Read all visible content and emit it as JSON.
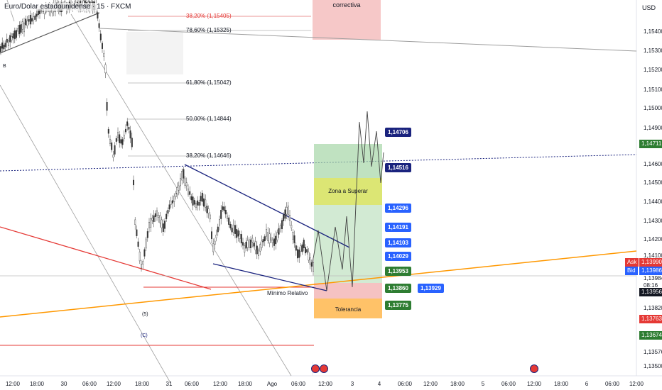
{
  "header": {
    "symbol": "Euro/Dolar estadounidense · 15 · FXCM",
    "currency": "USD"
  },
  "annotations": {
    "correctiva": "correctiva",
    "zona_superar": "Zona a Superar",
    "tolerancia": "Tolerancia",
    "minimo_relativo": "Mínimo Relativo",
    "wave_b": "B",
    "wave_5": "(5)",
    "wave_c": "(C)"
  },
  "fib_levels": [
    {
      "label": "38,20% (1,15405)",
      "color": "#e53935"
    },
    {
      "label": "78,60% (1,15325)",
      "color": "#131722"
    },
    {
      "label": "61,80% (1,15042)",
      "color": "#131722"
    },
    {
      "label": "50,00% (1,14844)",
      "color": "#131722"
    },
    {
      "label": "38,20% (1,14646)",
      "color": "#131722"
    }
  ],
  "target_tags": [
    {
      "label": "1,14706",
      "style": "navy"
    },
    {
      "label": "1,14516",
      "style": "navy"
    },
    {
      "label": "1,14296",
      "style": "blue"
    },
    {
      "label": "1,14191",
      "style": "blue"
    },
    {
      "label": "1,14103",
      "style": "blue"
    },
    {
      "label": "1,14029",
      "style": "blue"
    },
    {
      "label": "1,13953",
      "style": "green"
    },
    {
      "label": "1,13860",
      "style": "green"
    },
    {
      "label": "1,13929",
      "style": "blue"
    },
    {
      "label": "1,13775",
      "style": "green"
    }
  ],
  "price_axis": {
    "labels": [
      "1,15400",
      "1,15300",
      "1,15200",
      "1,15100",
      "1,15000",
      "1,14900",
      "1,14800",
      "1,14600",
      "1,14500",
      "1,14400",
      "1,14300",
      "1,14200",
      "1,14100",
      "1,13984",
      "1,13820",
      "1,13576",
      "1,13500"
    ],
    "badges": [
      {
        "label": "1,14711",
        "color": "#2e7d32"
      },
      {
        "label": "Ask",
        "value": "1,13990",
        "color": "#e53935"
      },
      {
        "label": "Bid",
        "value": "1,13986",
        "color": "#2962ff"
      },
      {
        "label": "08:16",
        "color": "#ffffff"
      },
      {
        "label": "1,13956",
        "color": "#131722"
      },
      {
        "label": "1,13763",
        "color": "#e53935"
      },
      {
        "label": "1,13674",
        "color": "#2e7d32"
      }
    ]
  },
  "time_axis": [
    "12:00",
    "18:00",
    "30",
    "06:00",
    "12:00",
    "18:00",
    "31",
    "06:00",
    "12:00",
    "18:00",
    "Ago",
    "06:00",
    "12:00",
    "3",
    "4",
    "06:00",
    "12:00",
    "18:00",
    "5",
    "06:00",
    "12:00",
    "18:00",
    "6",
    "06:00",
    "12:00"
  ],
  "colors": {
    "target_box": "#a5d6a7",
    "zone_box": "#cddc39",
    "stop_box": "#ef9a9a",
    "tolerance_box": "#ffb74d",
    "correctiva_box": "#ef9a9a",
    "channel": "#1a237e",
    "trend_orange": "#ff9800",
    "trend_red": "#e53935"
  }
}
